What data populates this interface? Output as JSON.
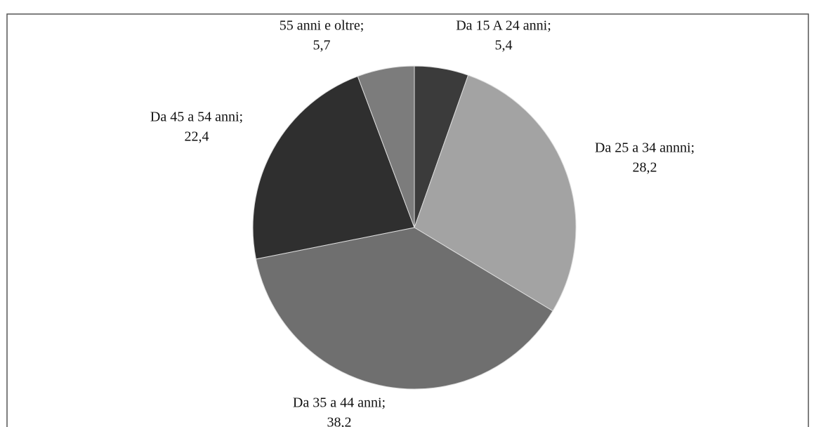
{
  "chart_data": {
    "type": "pie",
    "categories": [
      "Da 15 A 24 anni;",
      "Da 25 a 34 annni;",
      "Da 35 a 44 anni;",
      "Da 45 a 54 anni;",
      "55 anni e oltre;"
    ],
    "values": [
      5.4,
      28.2,
      38.2,
      22.4,
      5.7
    ],
    "value_labels": [
      "5,4",
      "28,2",
      "38,2",
      "22,4",
      "5,7"
    ],
    "colors": [
      "#3b3b3b",
      "#a3a3a3",
      "#6f6f6f",
      "#2f2f2f",
      "#7c7c7c"
    ]
  }
}
